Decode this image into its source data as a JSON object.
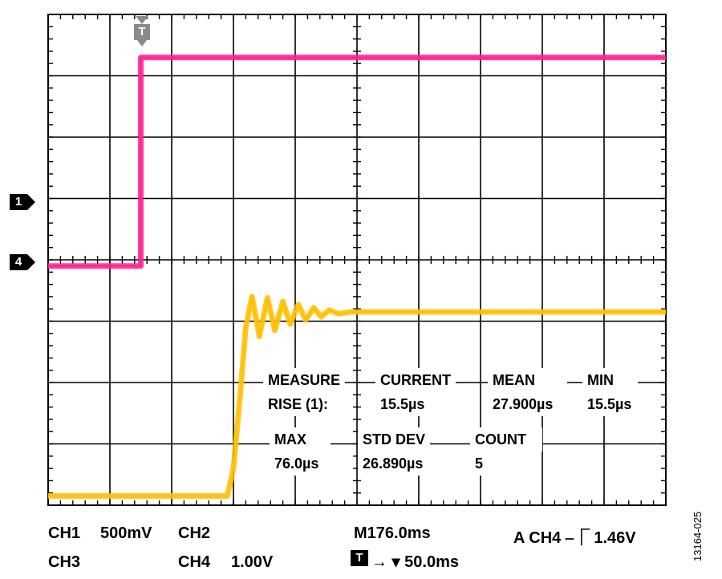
{
  "colors": {
    "ch1_trace": "#ff1f8f",
    "ch4_trace": "#ffbf00",
    "grid": "#000000",
    "trigger_marker": "#8a8a8a"
  },
  "chart_data": {
    "type": "line",
    "title": "",
    "xlabel": "",
    "ylabel": "",
    "divisions": {
      "x": 10,
      "y": 8
    },
    "xlim_div": [
      0,
      10
    ],
    "ylim_div": [
      0,
      8
    ],
    "trigger_position_div": 1.5,
    "series": [
      {
        "channel": "CH4",
        "color": "#ff1f8f",
        "points_div": [
          [
            0,
            3.9
          ],
          [
            1.5,
            3.9
          ],
          [
            1.5,
            7.3
          ],
          [
            10,
            7.3
          ]
        ]
      },
      {
        "channel": "CH1",
        "color": "#ffbf00",
        "points_div": [
          [
            0,
            0.15
          ],
          [
            2.9,
            0.15
          ],
          [
            3.0,
            0.6
          ],
          [
            3.1,
            1.7
          ],
          [
            3.2,
            2.9
          ],
          [
            3.3,
            3.4
          ],
          [
            3.42,
            2.75
          ],
          [
            3.55,
            3.38
          ],
          [
            3.67,
            2.85
          ],
          [
            3.8,
            3.32
          ],
          [
            3.92,
            2.95
          ],
          [
            4.05,
            3.27
          ],
          [
            4.17,
            3.02
          ],
          [
            4.3,
            3.22
          ],
          [
            4.42,
            3.07
          ],
          [
            4.55,
            3.18
          ],
          [
            4.7,
            3.12
          ],
          [
            4.9,
            3.15
          ],
          [
            10,
            3.15
          ]
        ]
      }
    ]
  },
  "markers": {
    "ch1": "1",
    "ch4": "4",
    "trigger": "T"
  },
  "measure": {
    "header_measure": "MEASURE",
    "header_current": "CURRENT",
    "header_mean": "MEAN",
    "header_min": "MIN",
    "rise_label": "RISE (1):",
    "current_value": "15.5µs",
    "mean_value": "27.900µs",
    "min_value": "15.5µs",
    "header_max": "MAX",
    "header_stddev": "STD DEV",
    "header_count": "COUNT",
    "max_value": "76.0µs",
    "stddev_value": "26.890µs",
    "count_value": "5"
  },
  "status": {
    "ch1_label": "CH1",
    "ch1_scale": "500mV",
    "ch2_label": "CH2",
    "ch3_label": "CH3",
    "ch4_label": "CH4",
    "ch4_scale": "1.00V",
    "timebase": "M176.0ms",
    "trigger_info": "A  CH4 ⎯⎾ 1.46V",
    "trigger_offset": "→ ▾ 50.0ms",
    "trigger_icon": "T"
  },
  "figure_id": "13164-025"
}
